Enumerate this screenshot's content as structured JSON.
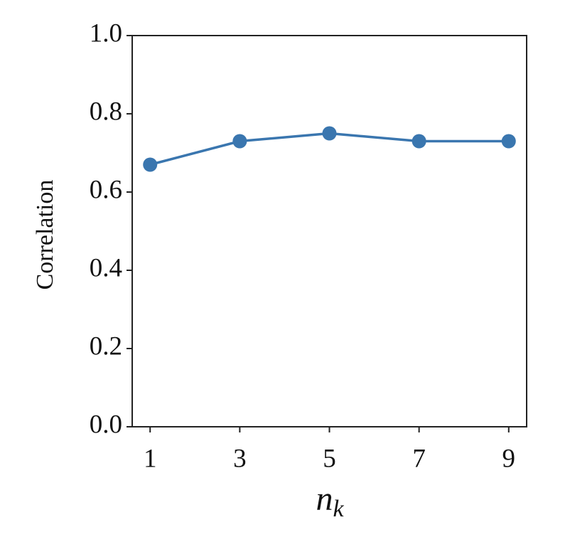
{
  "chart_data": {
    "type": "line",
    "ylabel": "Correlation",
    "xlabel": "n",
    "xlabel_subscript": "k",
    "x": [
      1,
      3,
      5,
      7,
      9
    ],
    "series": [
      {
        "name": "Correlation",
        "color": "#3a76af",
        "values": [
          0.67,
          0.73,
          0.75,
          0.73,
          0.73
        ]
      }
    ],
    "xlim": [
      0.6,
      9.4
    ],
    "xticks": [
      1,
      3,
      5,
      7,
      9
    ],
    "ylim": [
      0,
      1
    ],
    "yticks": [
      {
        "value": 0,
        "label": "0.0"
      },
      0.2,
      0.4,
      0.6,
      0.8,
      {
        "value": 1,
        "label": "1.0"
      }
    ],
    "grid": false,
    "legend": false
  }
}
